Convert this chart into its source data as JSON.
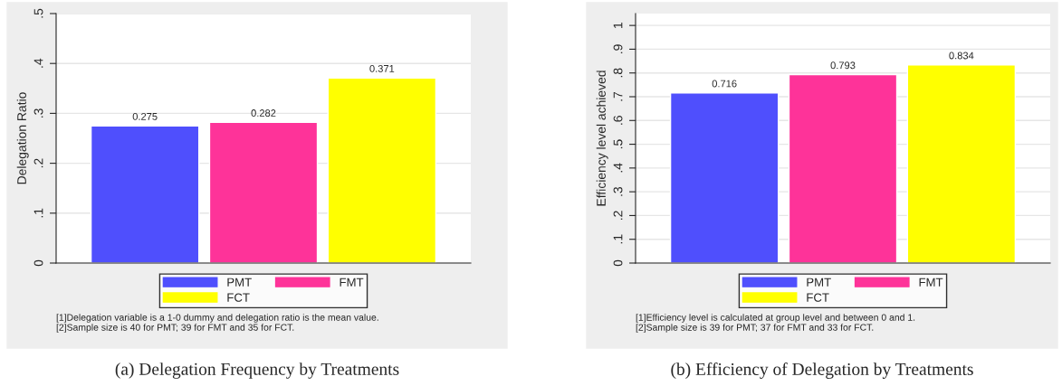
{
  "chart_data": [
    {
      "type": "bar",
      "title": "(a) Delegation Frequency by Treatments",
      "ylabel": "Delegation Ratio",
      "categories": [
        null,
        null,
        null
      ],
      "series": [
        {
          "name": "PMT",
          "color": "#4f4ffd",
          "values": [
            0.275,
            null,
            null
          ]
        },
        {
          "name": "FMT",
          "color": "#fe3399",
          "values": [
            null,
            0.282,
            null
          ]
        },
        {
          "name": "FCT",
          "color": "#ffff00",
          "values": [
            null,
            null,
            0.371
          ]
        }
      ],
      "ylim": [
        0,
        0.5
      ],
      "yticks": [
        0,
        {
          "value": 0.1,
          "label": ".1"
        },
        {
          "value": 0.2,
          "label": ".2"
        },
        {
          "value": 0.3,
          "label": ".3"
        },
        {
          "value": 0.4,
          "label": ".4"
        },
        {
          "value": 0.5,
          "label": ".5"
        }
      ],
      "data_labels": true,
      "grid": "y",
      "legend": "bottom",
      "annotations": [
        "[1]Delegation variable is a 1-0 dummy and delegation ratio is the mean value.",
        "[2]Sample size is 40 for PMT; 39 for FMT and 35 for FCT."
      ]
    },
    {
      "type": "bar",
      "title": "(b) Efficiency of Delegation by Treatments",
      "ylabel": "Efficiency level achieved",
      "categories": [
        null,
        null,
        null
      ],
      "series": [
        {
          "name": "PMT",
          "color": "#4f4ffd",
          "values": [
            0.716,
            null,
            null
          ]
        },
        {
          "name": "FMT",
          "color": "#fe3399",
          "values": [
            null,
            0.793,
            null
          ]
        },
        {
          "name": "FCT",
          "color": "#ffff00",
          "values": [
            null,
            null,
            0.834
          ]
        }
      ],
      "ylim": [
        0,
        1.05
      ],
      "yticks": [
        0,
        {
          "value": 0.1,
          "label": ".1"
        },
        {
          "value": 0.2,
          "label": ".2"
        },
        {
          "value": 0.3,
          "label": ".3"
        },
        {
          "value": 0.4,
          "label": ".4"
        },
        {
          "value": 0.5,
          "label": ".5"
        },
        {
          "value": 0.6,
          "label": ".6"
        },
        {
          "value": 0.7,
          "label": ".7"
        },
        {
          "value": 0.8,
          "label": ".8"
        },
        {
          "value": 0.9,
          "label": ".9"
        },
        1
      ],
      "data_labels": true,
      "grid": "y",
      "legend": "bottom",
      "annotations": [
        "[1]Efficiency level is calculated at group level and between 0 and 1.",
        "[2]Sample size is 39 for PMT; 37 for FMT and 33 for FCT."
      ]
    }
  ]
}
